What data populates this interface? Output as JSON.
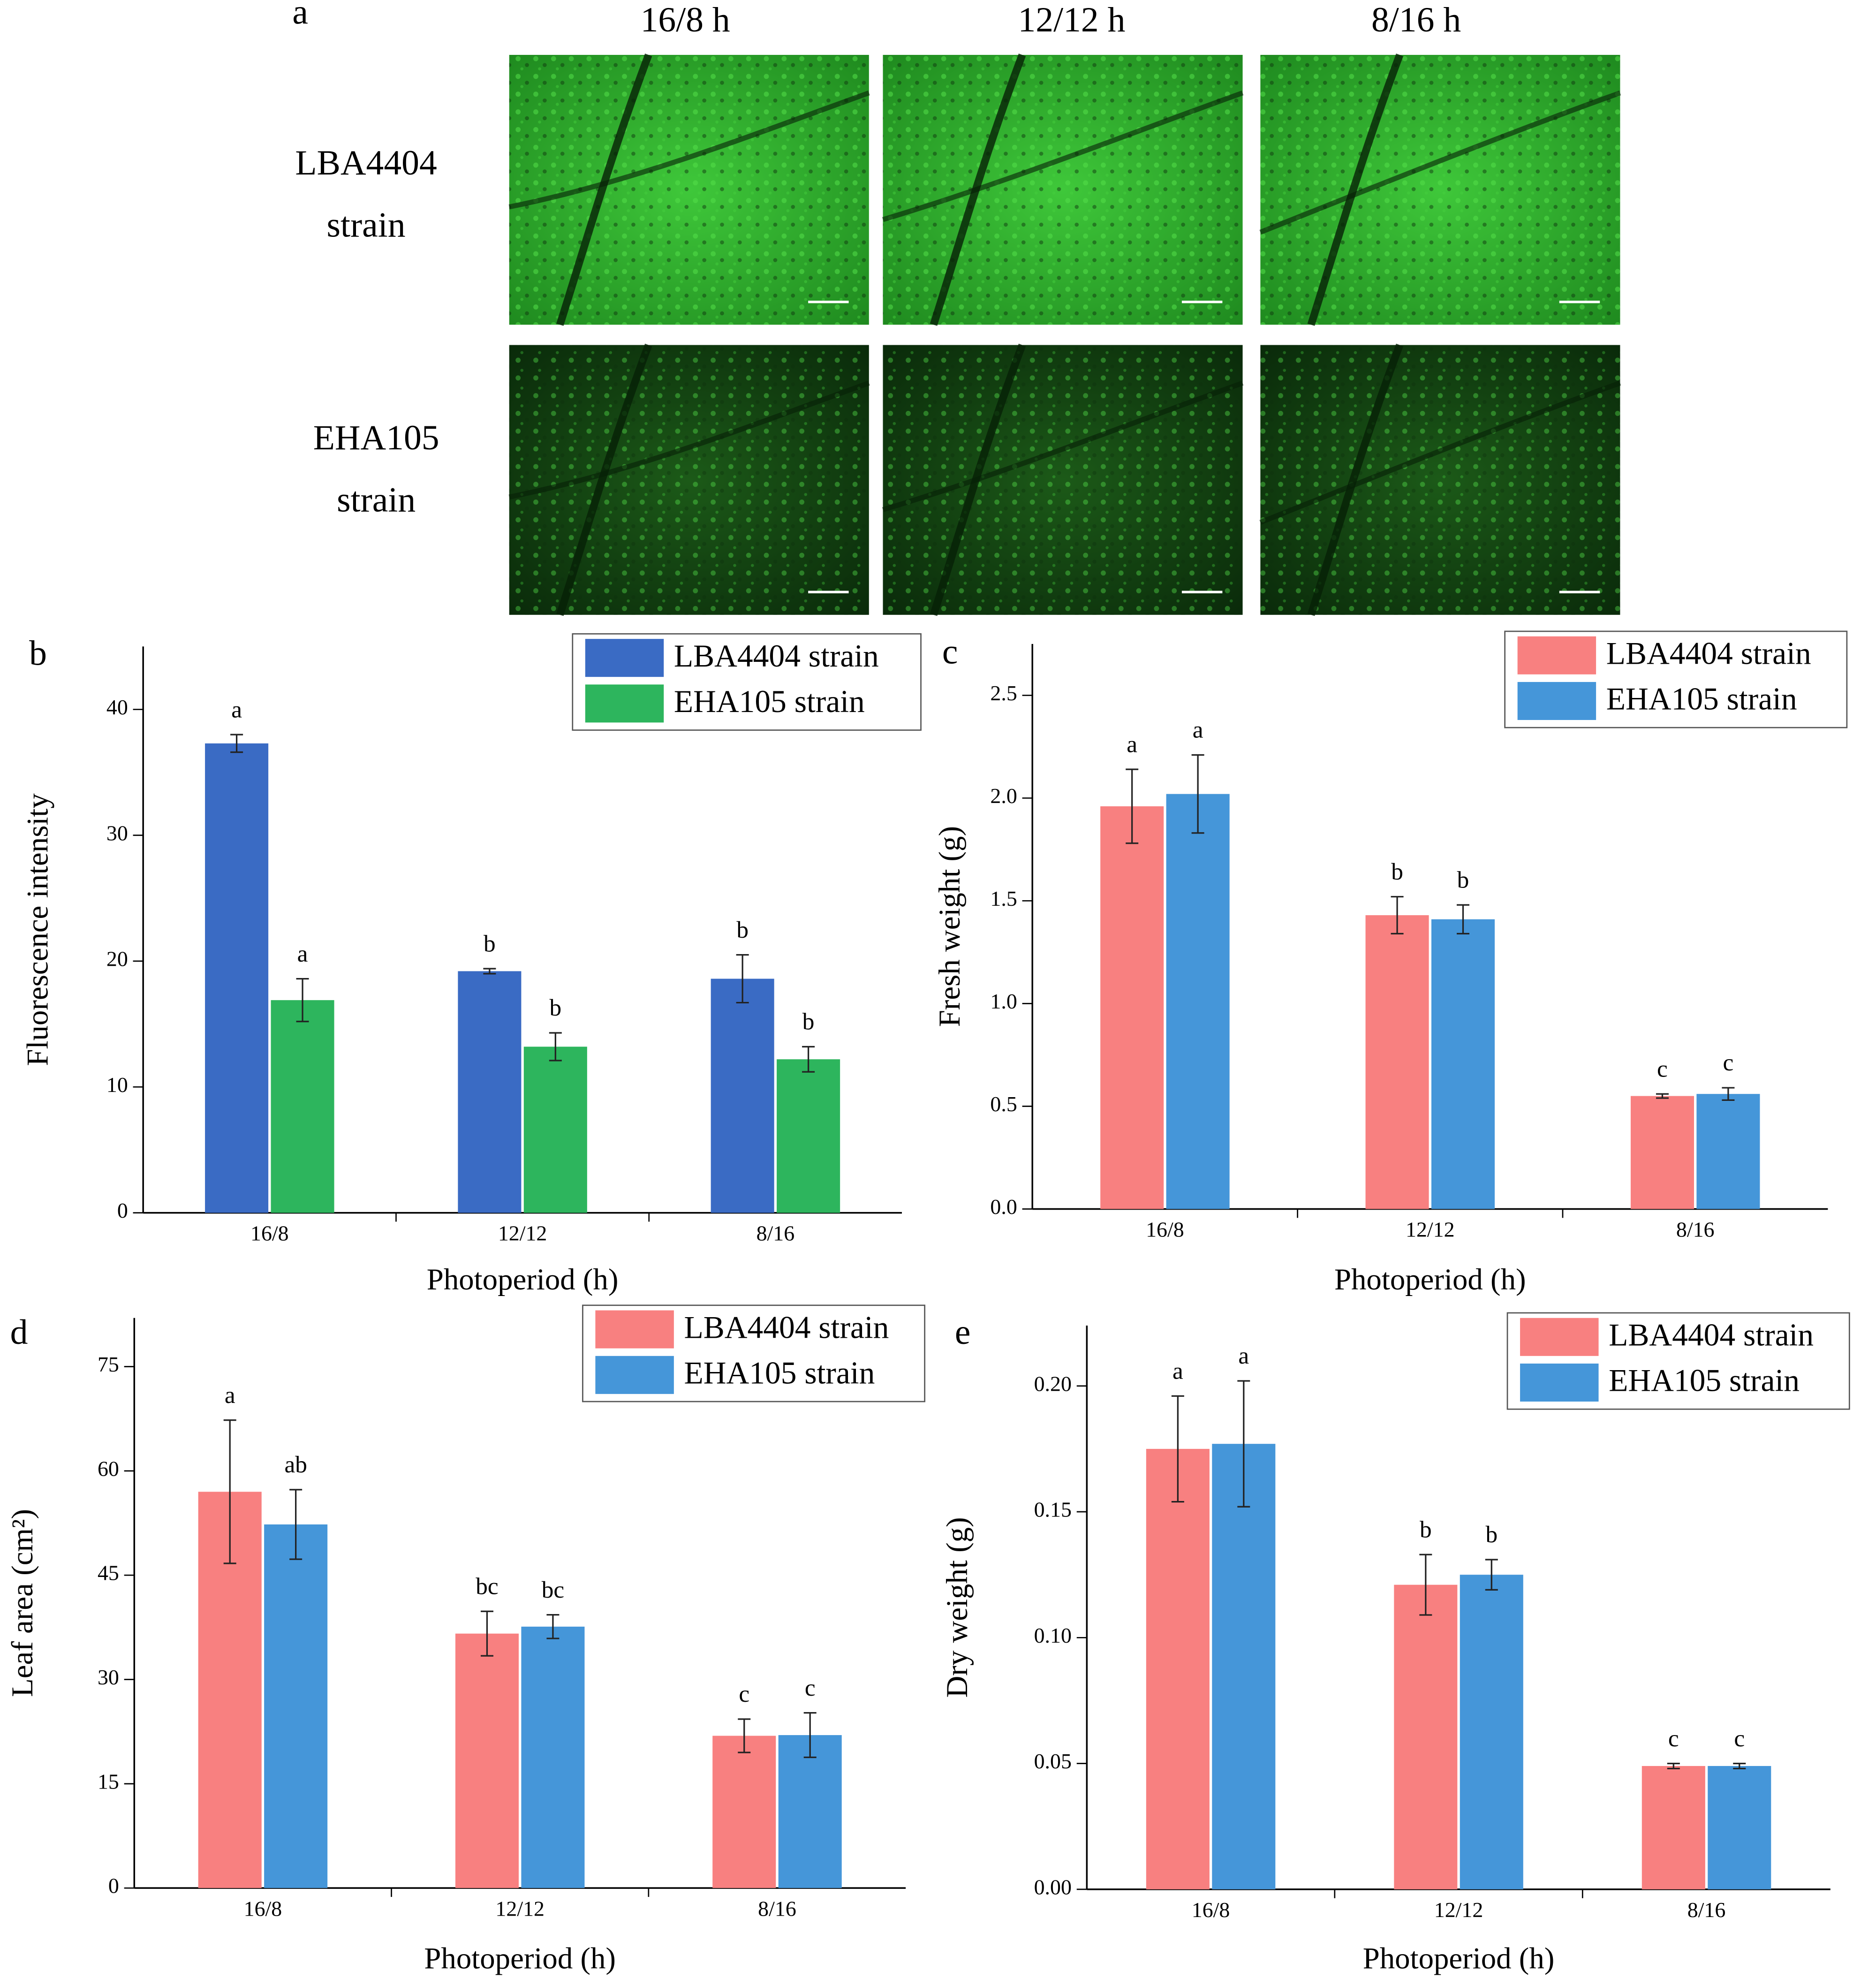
{
  "panel_a": {
    "label": "a",
    "columns": [
      "16/8 h",
      "12/12 h",
      "8/16 h"
    ],
    "rows": [
      [
        "LBA4404",
        "strain"
      ],
      [
        "EHA105",
        "strain"
      ]
    ]
  },
  "chart_data": [
    {
      "type": "bar",
      "panel": "b",
      "ylabel": "Fluorescence intensity",
      "xlabel": "Photoperiod (h)",
      "categories": [
        "16/8",
        "12/12",
        "8/16"
      ],
      "series": [
        {
          "name": "LBA4404 strain",
          "color": "#3a6bc4",
          "values": [
            37.3,
            19.2,
            18.6
          ],
          "errors": [
            0.7,
            0.2,
            1.9
          ],
          "labels": [
            "a",
            "b",
            "b"
          ]
        },
        {
          "name": "EHA105 strain",
          "color": "#2db55d",
          "values": [
            16.9,
            13.2,
            12.2
          ],
          "errors": [
            1.7,
            1.1,
            1.0
          ],
          "labels": [
            "a",
            "b",
            "b"
          ]
        }
      ],
      "ylim": [
        0,
        45
      ],
      "yticks": [
        0,
        10,
        20,
        30,
        40
      ],
      "legend": "upper right"
    },
    {
      "type": "bar",
      "panel": "c",
      "ylabel": "Fresh weight (g)",
      "xlabel": "Photoperiod (h)",
      "categories": [
        "16/8",
        "12/12",
        "8/16"
      ],
      "series": [
        {
          "name": "LBA4404 strain",
          "color": "#f88080",
          "values": [
            1.96,
            1.43,
            0.55
          ],
          "errors": [
            0.18,
            0.09,
            0.01
          ],
          "labels": [
            "a",
            "b",
            "c"
          ]
        },
        {
          "name": "EHA105 strain",
          "color": "#4596d9",
          "values": [
            2.02,
            1.41,
            0.56
          ],
          "errors": [
            0.19,
            0.07,
            0.03
          ],
          "labels": [
            "a",
            "b",
            "c"
          ]
        }
      ],
      "ylim": [
        0,
        2.75
      ],
      "yticks": [
        {
          "value": 0,
          "label": "0.0"
        },
        0.5,
        {
          "value": 1,
          "label": "1.0"
        },
        1.5,
        {
          "value": 2,
          "label": "2.0"
        },
        2.5
      ],
      "legend": "upper right"
    },
    {
      "type": "bar",
      "panel": "d",
      "ylabel": "Leaf area (cm²)",
      "xlabel": "Photoperiod (h)",
      "categories": [
        "16/8",
        "12/12",
        "8/16"
      ],
      "series": [
        {
          "name": "LBA4404 strain",
          "color": "#f88080",
          "values": [
            57.0,
            36.6,
            21.9
          ],
          "errors": [
            10.3,
            3.2,
            2.4
          ],
          "labels": [
            "a",
            "bc",
            "c"
          ]
        },
        {
          "name": "EHA105 strain",
          "color": "#4596d9",
          "values": [
            52.3,
            37.6,
            22.0
          ],
          "errors": [
            5.0,
            1.7,
            3.2
          ],
          "labels": [
            "ab",
            "bc",
            "c"
          ]
        }
      ],
      "ylim": [
        0,
        82
      ],
      "yticks": [
        0,
        15,
        30,
        45,
        60,
        75
      ],
      "legend": "upper right"
    },
    {
      "type": "bar",
      "panel": "e",
      "ylabel": "Dry weight (g)",
      "xlabel": "Photoperiod (h)",
      "categories": [
        "16/8",
        "12/12",
        "8/16"
      ],
      "series": [
        {
          "name": "LBA4404 strain",
          "color": "#f88080",
          "values": [
            0.175,
            0.121,
            0.049
          ],
          "errors": [
            0.021,
            0.012,
            0.001
          ],
          "labels": [
            "a",
            "b",
            "c"
          ]
        },
        {
          "name": "EHA105 strain",
          "color": "#4596d9",
          "values": [
            0.177,
            0.125,
            0.049
          ],
          "errors": [
            0.025,
            0.006,
            0.001
          ],
          "labels": [
            "a",
            "b",
            "c"
          ]
        }
      ],
      "ylim": [
        0,
        0.224
      ],
      "yticks": [
        {
          "value": 0,
          "label": "0.00"
        },
        0.05,
        {
          "value": 0.1,
          "label": "0.10"
        },
        0.15,
        {
          "value": 0.2,
          "label": "0.20"
        }
      ],
      "legend": "upper right"
    }
  ]
}
